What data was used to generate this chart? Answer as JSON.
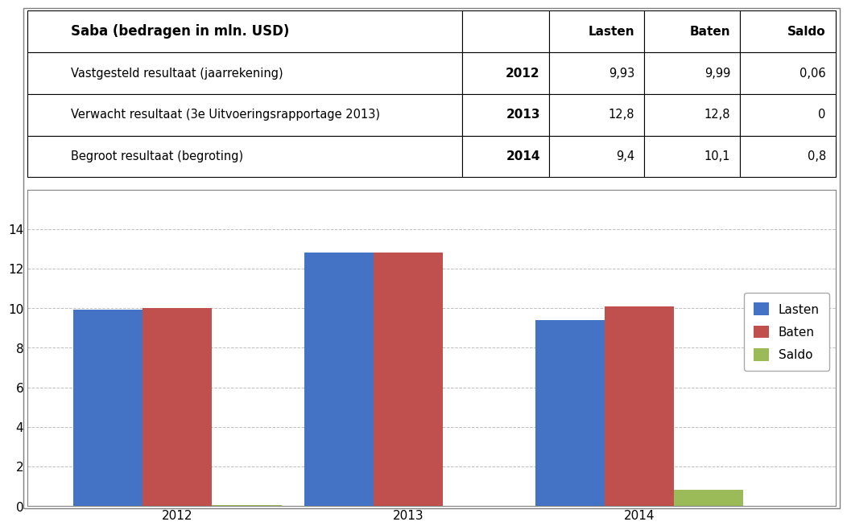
{
  "title": "Saba (bedragen in mln. USD)",
  "table_rows": [
    [
      "Vastgesteld resultaat (jaarrekening)",
      "2012",
      "9,93",
      "9,99",
      "0,06"
    ],
    [
      "Verwacht resultaat (3e Uitvoeringsrapportage 2013)",
      "2013",
      "12,8",
      "12,8",
      "0"
    ],
    [
      "Begroot resultaat (begroting)",
      "2014",
      "9,4",
      "10,1",
      "0,8"
    ]
  ],
  "years": [
    "2012",
    "2013",
    "2014"
  ],
  "lasten": [
    9.93,
    12.8,
    9.4
  ],
  "baten": [
    9.99,
    12.8,
    10.1
  ],
  "saldo": [
    0.06,
    0.0,
    0.8
  ],
  "bar_color_lasten": "#4472C4",
  "bar_color_baten": "#C0504D",
  "bar_color_saldo": "#9BBB59",
  "ylim": [
    0,
    16
  ],
  "yticks": [
    0,
    2,
    4,
    6,
    8,
    10,
    12,
    14
  ],
  "legend_labels": [
    "Lasten",
    "Baten",
    "Saldo"
  ],
  "background_color": "#FFFFFF",
  "plot_bg_color": "#FFFFFF",
  "grid_color": "#C0C0C0",
  "border_color": "#808080"
}
